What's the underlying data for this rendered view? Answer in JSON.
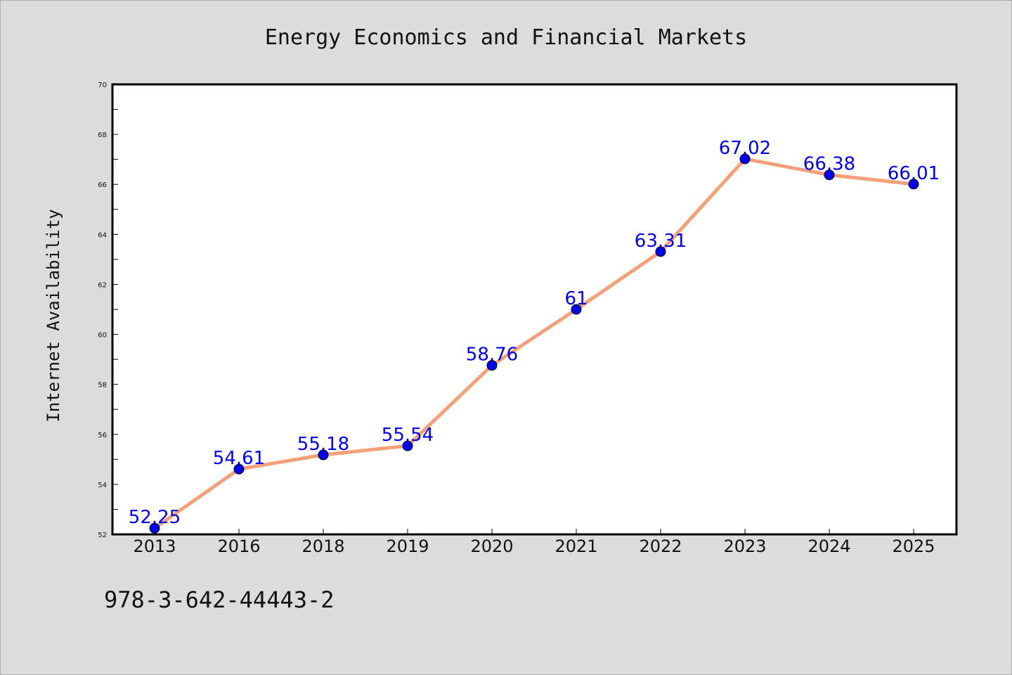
{
  "chart_data": {
    "type": "line",
    "title": "Energy Economics and Financial Markets",
    "ylabel": "Internet Availability",
    "xlabel": "",
    "categories": [
      "2013",
      "2016",
      "2018",
      "2019",
      "2020",
      "2021",
      "2022",
      "2023",
      "2024",
      "2025"
    ],
    "series": [
      {
        "values": [
          52.25,
          54.61,
          55.18,
          55.54,
          58.76,
          61,
          63.31,
          67.02,
          66.38,
          66.01
        ],
        "labels": [
          "52.25",
          "54.61",
          "55.18",
          "55.54",
          "58.76",
          "61",
          "63.31",
          "67.02",
          "66.38",
          "66.01"
        ]
      }
    ],
    "ylim": [
      52,
      70
    ],
    "yticks": [
      "52",
      "54",
      "56",
      "58",
      "60",
      "62",
      "64",
      "66",
      "68",
      "70"
    ],
    "grid": false,
    "legend": "none",
    "colors": {
      "line": "#f4a07a",
      "marker": "#0000ee",
      "data_label": "#0000ee",
      "plot_background": "#ffffff",
      "figure_background": "#dcdcdc"
    }
  },
  "footnote": "978-3-642-44443-2"
}
